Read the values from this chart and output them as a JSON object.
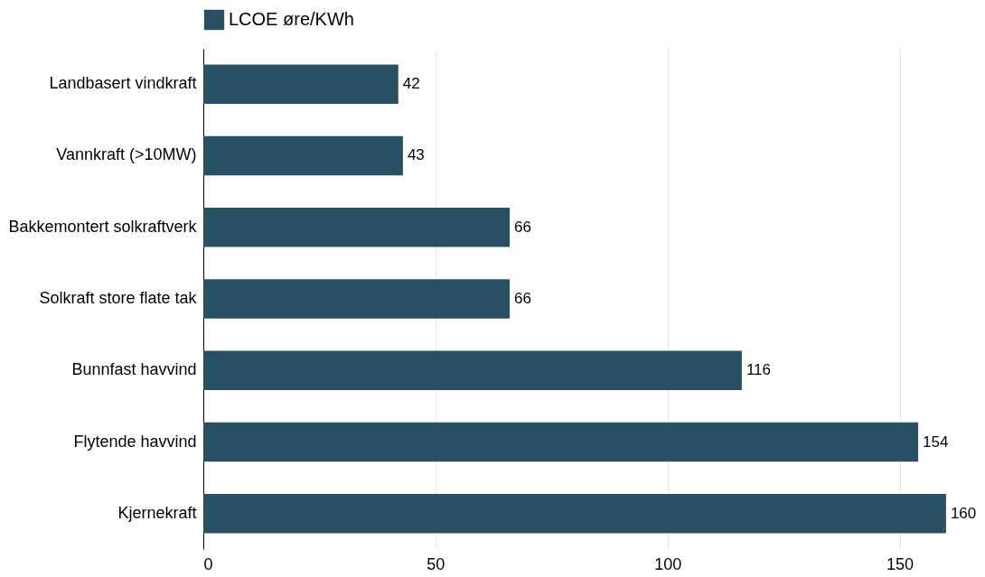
{
  "chart_data": {
    "type": "bar",
    "orientation": "horizontal",
    "categories": [
      "Landbasert vindkraft",
      "Vannkraft (>10MW)",
      "Bakkemontert solkraftverk",
      "Solkraft store flate tak",
      "Bunnfast havvind",
      "Flytende havvind",
      "Kjernekraft"
    ],
    "series": [
      {
        "name": "LCOE øre/KWh",
        "color": "#285064",
        "values": [
          42,
          43,
          66,
          66,
          116,
          154,
          160
        ]
      }
    ],
    "xlim": [
      0,
      168
    ],
    "xticks": [
      0,
      50,
      100,
      150
    ],
    "grid": "x",
    "legend": "top left",
    "data_labels": true
  }
}
